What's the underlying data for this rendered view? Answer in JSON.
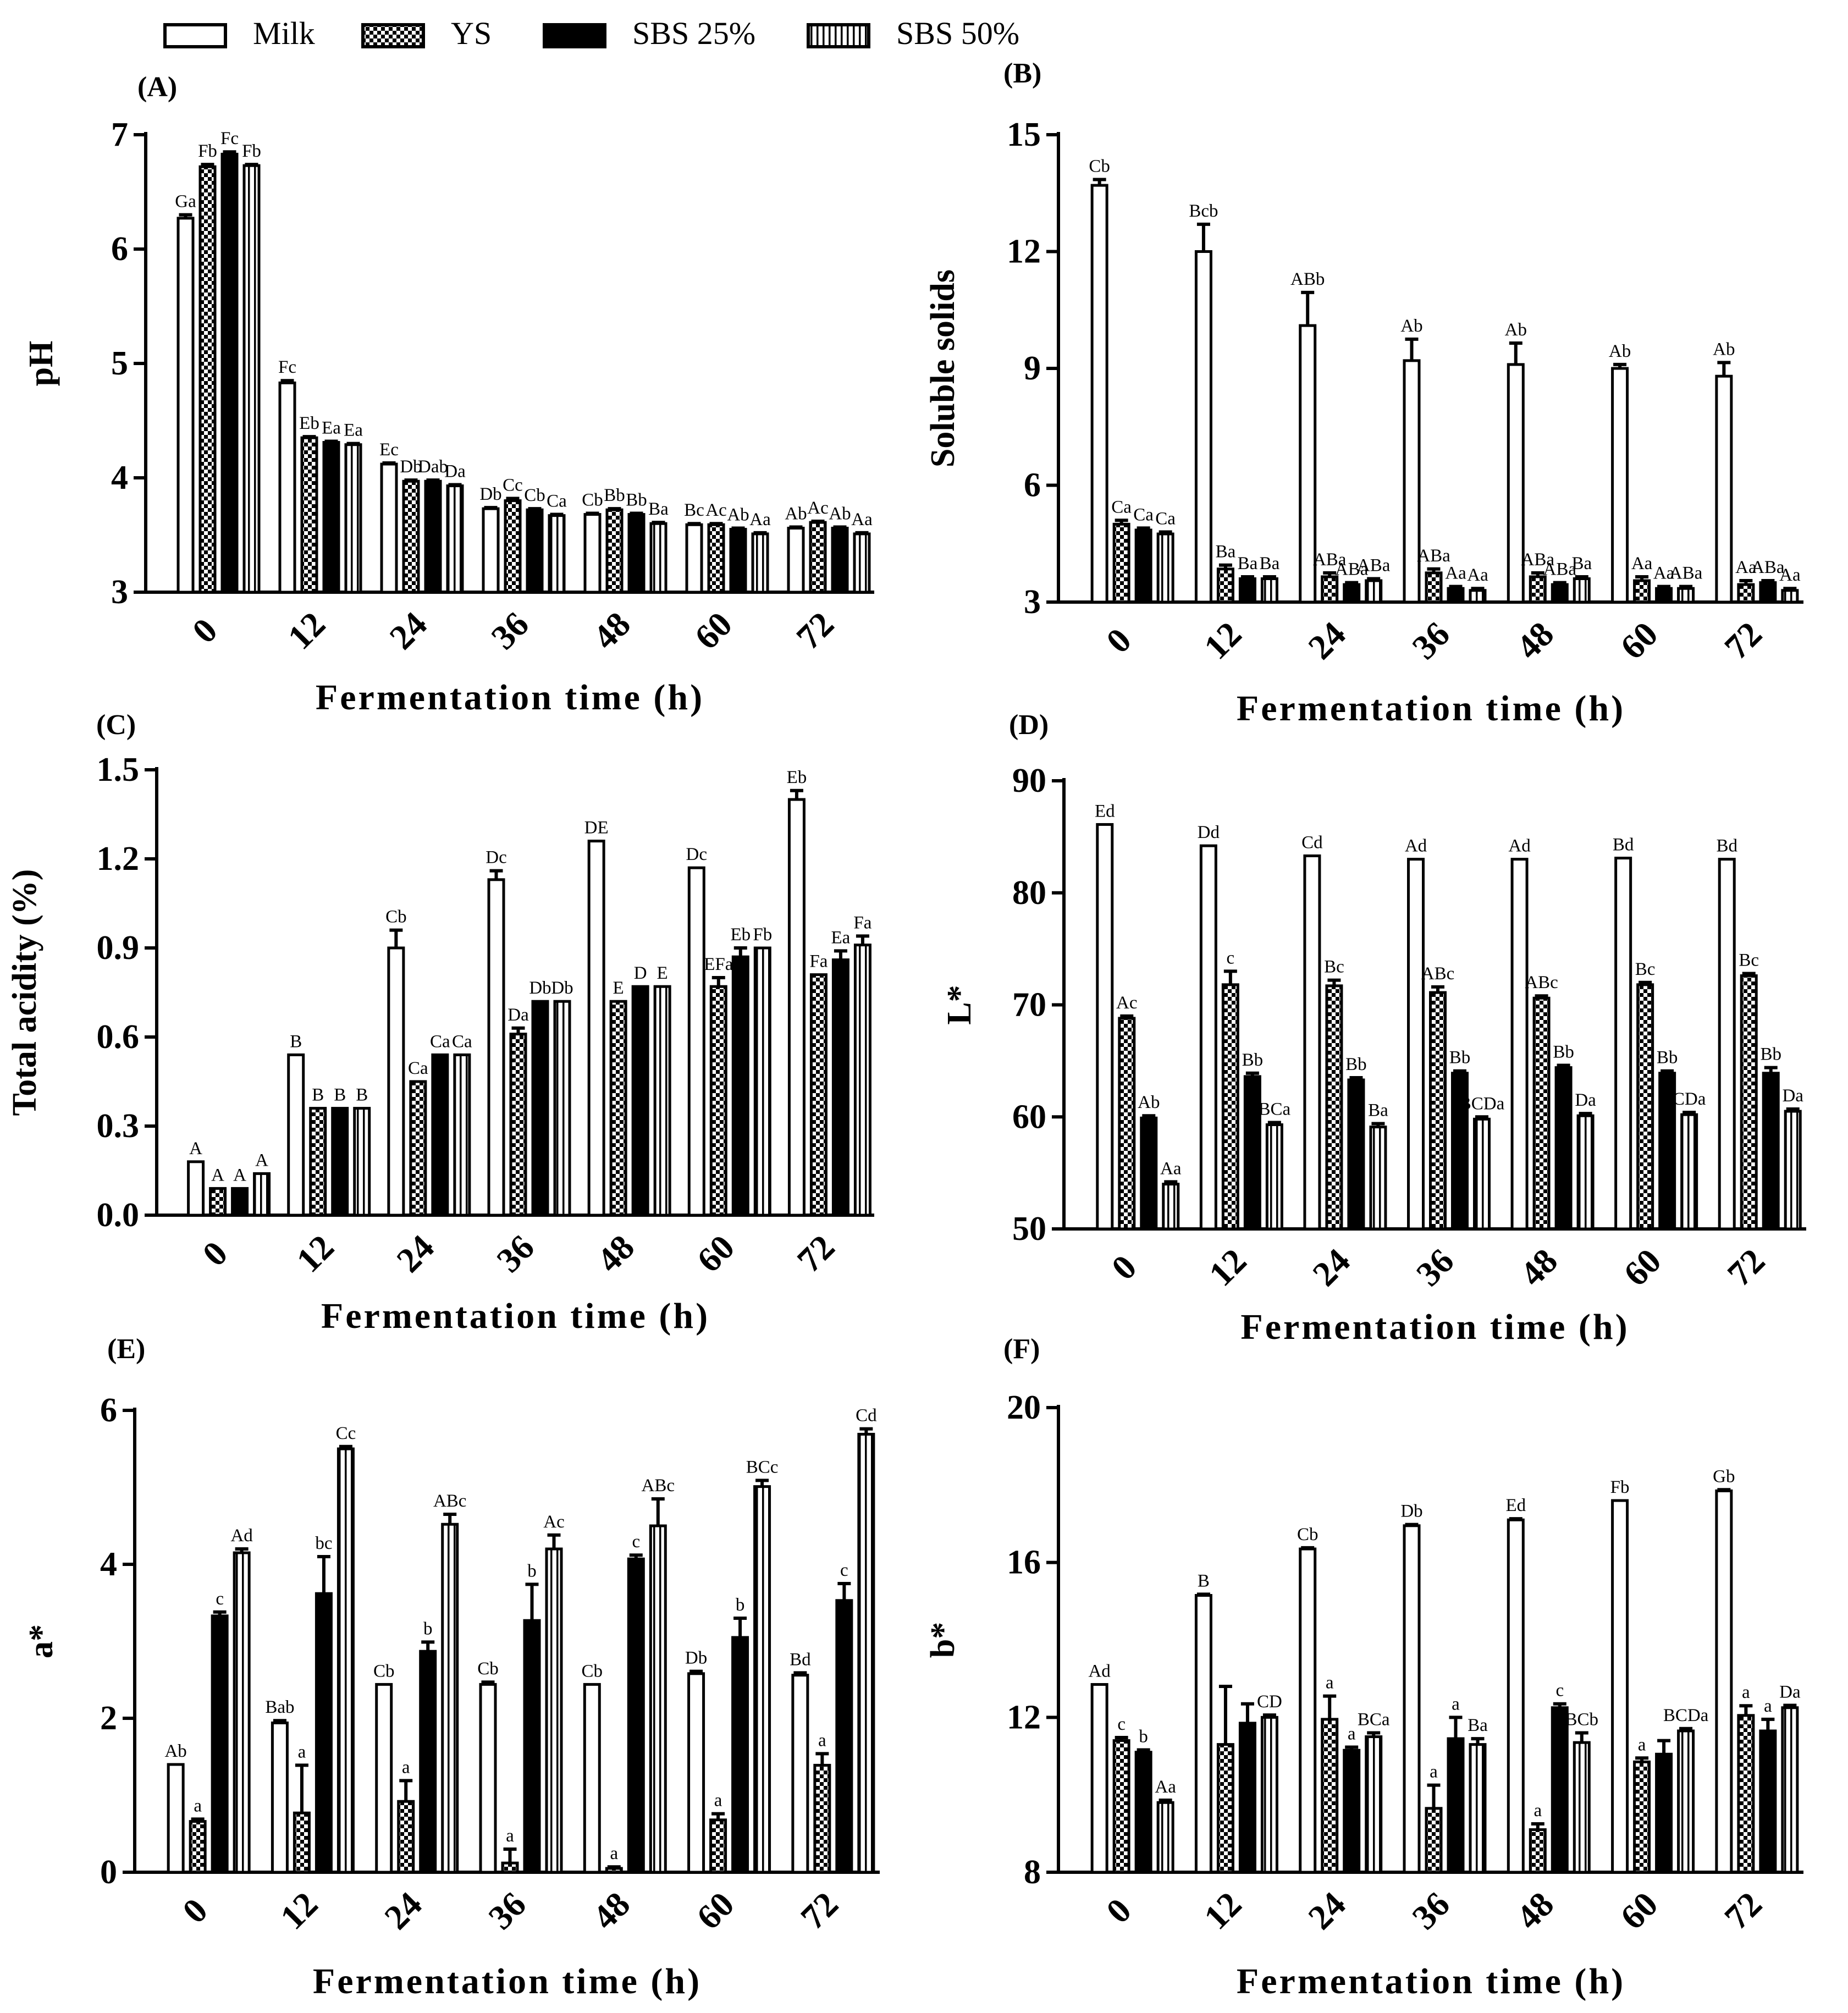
{
  "legend": [
    {
      "label": "Milk",
      "pattern": "milk"
    },
    {
      "label": "YS",
      "pattern": "ys"
    },
    {
      "label": "SBS 25%",
      "pattern": "sbs25"
    },
    {
      "label": "SBS 50%",
      "pattern": "sbs50"
    }
  ],
  "chart_data": [
    {
      "panel": "(A)",
      "type": "bar",
      "title": "",
      "xlabel": "Fermentation time (h)",
      "ylabel": "pH",
      "categories": [
        "0",
        "12",
        "24",
        "36",
        "48",
        "60",
        "72"
      ],
      "ylim": [
        3,
        7
      ],
      "yticks": [
        "3",
        "4",
        "5",
        "6",
        "7"
      ],
      "series": [
        {
          "name": "Milk",
          "values": [
            6.27,
            4.83,
            4.12,
            3.73,
            3.68,
            3.59,
            3.56
          ],
          "errors": [
            0.03,
            0.02,
            0.01,
            0.01,
            0.01,
            0.01,
            0.01
          ],
          "labels": [
            "Ga",
            "Fc",
            "Ec",
            "Db",
            "Cb",
            "Bc",
            "Ab"
          ]
        },
        {
          "name": "YS",
          "values": [
            6.72,
            4.35,
            3.97,
            3.8,
            3.72,
            3.59,
            3.61
          ],
          "errors": [
            0.02,
            0.01,
            0.01,
            0.02,
            0.01,
            0.01,
            0.01
          ],
          "labels": [
            "Fb",
            "Eb",
            "Db",
            "Cc",
            "Bb",
            "Ac",
            "Ac"
          ]
        },
        {
          "name": "SBS 25%",
          "values": [
            6.83,
            4.31,
            3.97,
            3.72,
            3.68,
            3.55,
            3.56
          ],
          "errors": [
            0.02,
            0.01,
            0.01,
            0.01,
            0.01,
            0.01,
            0.01
          ],
          "labels": [
            "Fc",
            "Ea",
            "Dab",
            "Cb",
            "Bb",
            "Ab",
            "Ab"
          ]
        },
        {
          "name": "SBS 50%",
          "values": [
            6.73,
            4.29,
            3.93,
            3.67,
            3.6,
            3.51,
            3.51
          ],
          "errors": [
            0.01,
            0.01,
            0.01,
            0.01,
            0.01,
            0.01,
            0.01
          ],
          "labels": [
            "Fb",
            "Ea",
            "Da",
            "Ca",
            "Ba",
            "Aa",
            "Aa"
          ]
        }
      ]
    },
    {
      "panel": "(B)",
      "type": "bar",
      "title": "",
      "xlabel": "Fermentation time (h)",
      "ylabel": "Soluble solids",
      "categories": [
        "0",
        "12",
        "24",
        "36",
        "48",
        "60",
        "72"
      ],
      "ylim": [
        3,
        15
      ],
      "yticks": [
        "3",
        "6",
        "9",
        "12",
        "15"
      ],
      "series": [
        {
          "name": "Milk",
          "values": [
            13.7,
            12.0,
            10.1,
            9.2,
            9.1,
            9.0,
            8.8
          ],
          "errors": [
            0.15,
            0.7,
            0.85,
            0.55,
            0.55,
            0.1,
            0.35
          ],
          "labels": [
            "Cb",
            "Bcb",
            "ABb",
            "Ab",
            "Ab",
            "Ab",
            "Ab"
          ]
        },
        {
          "name": "YS",
          "values": [
            5.0,
            3.85,
            3.65,
            3.75,
            3.65,
            3.55,
            3.45
          ],
          "errors": [
            0.1,
            0.1,
            0.1,
            0.1,
            0.1,
            0.1,
            0.1
          ],
          "labels": [
            "Ca",
            "Ba",
            "ABa",
            "ABa",
            "ABa",
            "Aa",
            "Aa"
          ]
        },
        {
          "name": "SBS 25%",
          "values": [
            4.85,
            3.6,
            3.45,
            3.35,
            3.45,
            3.35,
            3.5
          ],
          "errors": [
            0.05,
            0.05,
            0.05,
            0.05,
            0.05,
            0.05,
            0.05
          ],
          "labels": [
            "Ca",
            "Ba",
            "ABa",
            "Aa",
            "ABa",
            "Aa",
            "ABa"
          ]
        },
        {
          "name": "SBS 50%",
          "values": [
            4.75,
            3.6,
            3.55,
            3.3,
            3.6,
            3.35,
            3.3
          ],
          "errors": [
            0.05,
            0.05,
            0.05,
            0.05,
            0.05,
            0.05,
            0.05
          ],
          "labels": [
            "Ca",
            "Ba",
            "ABa",
            "Aa",
            "Ba",
            "ABa",
            "Aa"
          ]
        }
      ]
    },
    {
      "panel": "(C)",
      "type": "bar",
      "title": "",
      "xlabel": "Fermentation time (h)",
      "ylabel": "Total acidity (%)",
      "categories": [
        "0",
        "12",
        "24",
        "36",
        "48",
        "60",
        "72"
      ],
      "ylim": [
        0,
        1.5
      ],
      "yticks": [
        "0.0",
        "0.3",
        "0.6",
        "0.9",
        "1.2",
        "1.5"
      ],
      "series": [
        {
          "name": "Milk",
          "values": [
            0.18,
            0.54,
            0.9,
            1.13,
            1.26,
            1.17,
            1.4
          ],
          "errors": [
            0,
            0,
            0.06,
            0.03,
            0,
            0,
            0.03
          ],
          "labels": [
            "A",
            "B",
            "Cb",
            "Dc",
            "DE",
            "Dc",
            "Eb"
          ]
        },
        {
          "name": "YS",
          "values": [
            0.09,
            0.36,
            0.45,
            0.61,
            0.72,
            0.77,
            0.81
          ],
          "errors": [
            0,
            0,
            0,
            0.02,
            0,
            0.03,
            0
          ],
          "labels": [
            "A",
            "B",
            "Ca",
            "Da",
            "E",
            "EFa",
            "Fa"
          ]
        },
        {
          "name": "SBS 25%",
          "values": [
            0.09,
            0.36,
            0.54,
            0.72,
            0.77,
            0.87,
            0.86
          ],
          "errors": [
            0,
            0,
            0,
            0,
            0,
            0.03,
            0.03
          ],
          "labels": [
            "A",
            "B",
            "Ca",
            "Db",
            "D",
            "Eb",
            "Ea"
          ]
        },
        {
          "name": "SBS 50%",
          "values": [
            0.14,
            0.36,
            0.54,
            0.72,
            0.77,
            0.9,
            0.91
          ],
          "errors": [
            0,
            0,
            0,
            0,
            0,
            0,
            0.03
          ],
          "labels": [
            "A",
            "B",
            "Ca",
            "Db",
            "E",
            "Fb",
            "Fa"
          ]
        }
      ]
    },
    {
      "panel": "(D)",
      "type": "bar",
      "title": "",
      "xlabel": "Fermentation time (h)",
      "ylabel": "L*",
      "categories": [
        "0",
        "12",
        "24",
        "36",
        "48",
        "60",
        "72"
      ],
      "ylim": [
        50,
        90
      ],
      "yticks": [
        "50",
        "60",
        "70",
        "80",
        "90"
      ],
      "series": [
        {
          "name": "Milk",
          "values": [
            86.1,
            84.2,
            83.3,
            83.0,
            83.0,
            83.1,
            83.0
          ],
          "errors": [
            0,
            0,
            0,
            0,
            0,
            0,
            0
          ],
          "labels": [
            "Ed",
            "Dd",
            "Cd",
            "Ad",
            "Ad",
            "Bd",
            "Bd"
          ]
        },
        {
          "name": "YS",
          "values": [
            68.8,
            71.8,
            71.7,
            71.1,
            70.6,
            71.8,
            72.6
          ],
          "errors": [
            0.2,
            1.2,
            0.5,
            0.5,
            0.2,
            0.2,
            0.2
          ],
          "labels": [
            "Ac",
            "c",
            "Bc",
            "ABc",
            "ABc",
            "Bc",
            "Bc"
          ]
        },
        {
          "name": "SBS 25%",
          "values": [
            59.9,
            63.6,
            63.3,
            63.9,
            64.4,
            63.9,
            63.9
          ],
          "errors": [
            0.2,
            0.3,
            0.2,
            0.2,
            0.2,
            0.2,
            0.5
          ],
          "labels": [
            "Ab",
            "Bb",
            "Bb",
            "Bb",
            "Bb",
            "Bb",
            "Bb"
          ]
        },
        {
          "name": "SBS 50%",
          "values": [
            54.0,
            59.3,
            59.1,
            59.8,
            60.1,
            60.2,
            60.5
          ],
          "errors": [
            0.2,
            0.2,
            0.3,
            0.2,
            0.2,
            0.2,
            0.2
          ],
          "labels": [
            "Aa",
            "BCa",
            "Ba",
            "BCDa",
            "Da",
            "CDa",
            "Da"
          ]
        }
      ]
    },
    {
      "panel": "(E)",
      "type": "bar",
      "title": "",
      "xlabel": "Fermentation time (h)",
      "ylabel": "a*",
      "categories": [
        "0",
        "12",
        "24",
        "36",
        "48",
        "60",
        "72"
      ],
      "ylim": [
        0,
        6
      ],
      "yticks": [
        "0",
        "2",
        "4",
        "6"
      ],
      "series": [
        {
          "name": "Milk",
          "values": [
            1.4,
            1.94,
            2.44,
            2.44,
            2.44,
            2.58,
            2.56
          ],
          "errors": [
            0,
            0.03,
            0,
            0.03,
            0,
            0.03,
            0.03
          ],
          "labels": [
            "Ab",
            "Bab",
            "Cb",
            "Cb",
            "Cb",
            "Db",
            "Bd"
          ]
        },
        {
          "name": "YS",
          "values": [
            0.66,
            0.77,
            0.92,
            0.12,
            0.05,
            0.68,
            1.39
          ],
          "errors": [
            0.03,
            0.62,
            0.27,
            0.18,
            0.02,
            0.08,
            0.15
          ],
          "labels": [
            "a",
            "a",
            "a",
            "a",
            "a",
            "a",
            "a"
          ]
        },
        {
          "name": "SBS 25%",
          "values": [
            3.33,
            3.62,
            2.87,
            3.27,
            4.07,
            3.05,
            3.53
          ],
          "errors": [
            0.05,
            0.48,
            0.12,
            0.47,
            0.05,
            0.25,
            0.22
          ],
          "labels": [
            "c",
            "bc",
            "b",
            "b",
            "c",
            "b",
            "c"
          ]
        },
        {
          "name": "SBS 50%",
          "values": [
            4.15,
            5.5,
            4.52,
            4.2,
            4.5,
            5.01,
            5.69
          ],
          "errors": [
            0.05,
            0.03,
            0.13,
            0.18,
            0.35,
            0.08,
            0.07
          ],
          "labels": [
            "Ad",
            "Cc",
            "ABc",
            "Ac",
            "ABc",
            "BCc",
            "Cd"
          ]
        }
      ]
    },
    {
      "panel": "(F)",
      "type": "bar",
      "title": "",
      "xlabel": "Fermentation time (h)",
      "ylabel": "b*",
      "categories": [
        "0",
        "12",
        "24",
        "36",
        "48",
        "60",
        "72"
      ],
      "ylim": [
        8,
        20
      ],
      "yticks": [
        "8",
        "12",
        "16",
        "20"
      ],
      "series": [
        {
          "name": "Milk",
          "values": [
            12.85,
            15.15,
            16.35,
            16.95,
            17.1,
            17.6,
            17.85
          ],
          "errors": [
            0,
            0.03,
            0.03,
            0.03,
            0.03,
            0,
            0.03
          ],
          "labels": [
            "Ad",
            "B",
            "Cb",
            "Db",
            "Ed",
            "Fb",
            "Gb"
          ]
        },
        {
          "name": "YS",
          "values": [
            11.4,
            11.3,
            11.95,
            9.65,
            9.1,
            10.85,
            12.05
          ],
          "errors": [
            0.08,
            1.5,
            0.6,
            0.6,
            0.15,
            0.1,
            0.25
          ],
          "labels": [
            "c",
            "",
            "a",
            "a",
            "a",
            "a",
            "a"
          ]
        },
        {
          "name": "SBS 25%",
          "values": [
            11.1,
            11.85,
            11.15,
            11.45,
            12.25,
            11.05,
            11.65
          ],
          "errors": [
            0.06,
            0.5,
            0.08,
            0.55,
            0.1,
            0.35,
            0.3
          ],
          "labels": [
            "b",
            "",
            "a",
            "a",
            "c",
            "",
            "a"
          ]
        },
        {
          "name": "SBS 50%",
          "values": [
            9.8,
            12.0,
            11.5,
            11.3,
            11.35,
            11.65,
            12.25
          ],
          "errors": [
            0.06,
            0.06,
            0.1,
            0.15,
            0.25,
            0.06,
            0.06
          ],
          "labels": [
            "Aa",
            "CD",
            "BCa",
            "Ba",
            "BCb",
            "BCDa",
            "Da"
          ]
        }
      ]
    }
  ]
}
